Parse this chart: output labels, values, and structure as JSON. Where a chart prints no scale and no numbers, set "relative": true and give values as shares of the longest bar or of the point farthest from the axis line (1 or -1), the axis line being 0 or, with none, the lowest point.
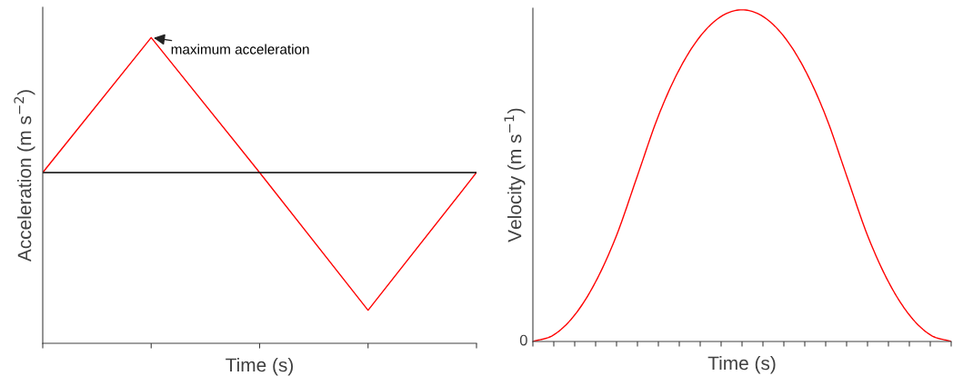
{
  "chart_data": [
    {
      "type": "line",
      "relative": true,
      "xlabel": "Time (s)",
      "ylabel": "Acceleration (m s$^{−2}$)",
      "categories": [
        null,
        null,
        null,
        null,
        null
      ],
      "series": [
        {
          "color": "#ff0000",
          "values": [
            0,
            0.98,
            0,
            -1,
            0
          ]
        }
      ],
      "ref_lines": [
        {
          "axis": "y",
          "value": 0,
          "color": "#000000"
        }
      ],
      "annotations": [
        "maximum acceleration"
      ]
    },
    {
      "type": "line",
      "relative": true,
      "xlabel": "Time (s)",
      "ylabel": "Velocity (m s$^{−1}$)",
      "categories": [
        null,
        null,
        null,
        null,
        null,
        null,
        null,
        null,
        null,
        null,
        null,
        null,
        null,
        null,
        null,
        null,
        null,
        null,
        null,
        null,
        null
      ],
      "series": [
        {
          "color": "#ff0000",
          "values": [
            0,
            0.02,
            0.08,
            0.18,
            0.32,
            0.5,
            0.68,
            0.82,
            0.92,
            0.98,
            1.0,
            0.98,
            0.92,
            0.82,
            0.68,
            0.5,
            0.32,
            0.18,
            0.08,
            0.02,
            0
          ]
        }
      ],
      "annotations": [
        "0"
      ]
    }
  ]
}
